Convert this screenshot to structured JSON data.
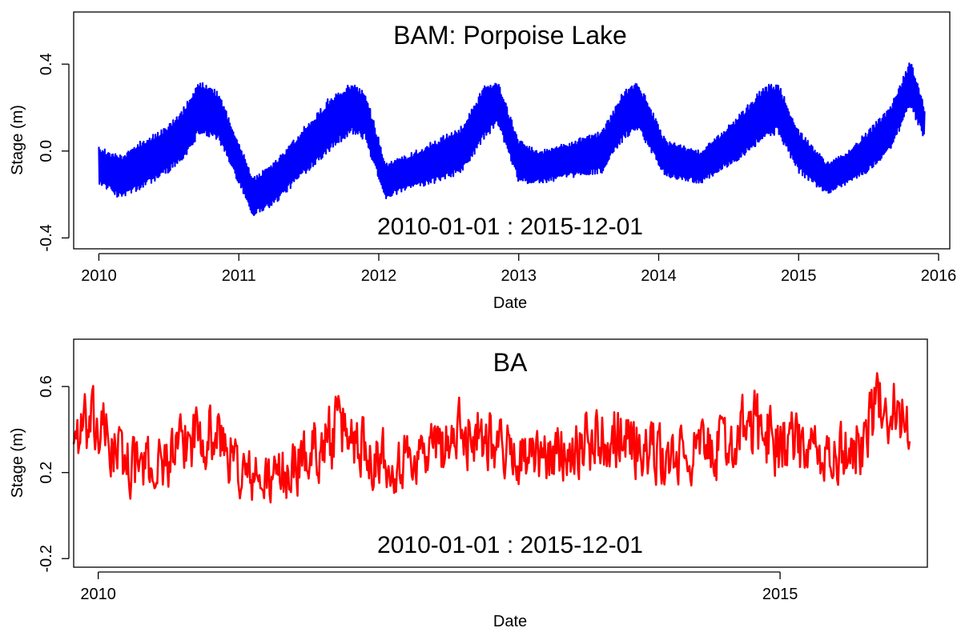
{
  "chart_data": [
    {
      "type": "line",
      "title": "BAM: Porpoise Lake",
      "annotation": "2010-01-01  :  2015-12-01",
      "xlabel": "Date",
      "ylabel": "Stage (m)",
      "xlim": [
        2009.82,
        2016.08
      ],
      "ylim": [
        -0.45,
        0.64
      ],
      "xticks": [
        2010,
        2011,
        2012,
        2013,
        2014,
        2015,
        2016
      ],
      "yticks": [
        -0.4,
        0.0,
        0.4
      ],
      "ytick_labels": [
        "-0.4",
        "0.0",
        "0.4"
      ],
      "series": [
        {
          "color": "#0000ff",
          "x": [
            2010.0,
            2010.15,
            2010.3,
            2010.45,
            2010.6,
            2010.72,
            2010.85,
            2011.0,
            2011.1,
            2011.25,
            2011.45,
            2011.65,
            2011.8,
            2011.9,
            2012.05,
            2012.2,
            2012.4,
            2012.6,
            2012.75,
            2012.85,
            2013.0,
            2013.15,
            2013.4,
            2013.6,
            2013.75,
            2013.85,
            2014.05,
            2014.3,
            2014.55,
            2014.75,
            2014.85,
            2015.0,
            2015.2,
            2015.35,
            2015.5,
            2015.65,
            2015.8,
            2015.9
          ],
          "upper": [
            0.02,
            -0.02,
            0.05,
            0.1,
            0.2,
            0.32,
            0.28,
            0.05,
            -0.12,
            -0.05,
            0.1,
            0.25,
            0.32,
            0.28,
            -0.05,
            -0.02,
            0.05,
            0.12,
            0.3,
            0.33,
            0.05,
            0.0,
            0.05,
            0.1,
            0.28,
            0.33,
            0.05,
            0.0,
            0.15,
            0.3,
            0.32,
            0.1,
            -0.05,
            0.0,
            0.1,
            0.2,
            0.42,
            0.2
          ],
          "lower": [
            -0.15,
            -0.22,
            -0.18,
            -0.12,
            -0.05,
            0.08,
            0.05,
            -0.15,
            -0.3,
            -0.25,
            -0.12,
            0.0,
            0.08,
            0.05,
            -0.22,
            -0.18,
            -0.15,
            -0.1,
            0.05,
            0.12,
            -0.15,
            -0.15,
            -0.12,
            -0.1,
            0.05,
            0.1,
            -0.12,
            -0.15,
            -0.05,
            0.05,
            0.08,
            -0.1,
            -0.2,
            -0.15,
            -0.1,
            0.0,
            0.2,
            0.05
          ]
        }
      ]
    },
    {
      "type": "line",
      "title": "BA",
      "annotation": "2010-01-01  :  2015-12-01",
      "xlabel": "Date",
      "ylabel": "Stage (m)",
      "xlim": [
        2009.82,
        2016.08
      ],
      "ylim": [
        -0.24,
        0.82
      ],
      "xticks": [
        2010,
        2015
      ],
      "yticks": [
        -0.2,
        0.2,
        0.6
      ],
      "ytick_labels": [
        "-0.2",
        "0.2",
        "0.6"
      ],
      "series": [
        {
          "color": "#ff0000",
          "x": [
            2009.82,
            2010.0,
            2010.2,
            2010.4,
            2010.6,
            2010.75,
            2010.9,
            2011.05,
            2011.2,
            2011.4,
            2011.6,
            2011.8,
            2012.0,
            2012.2,
            2012.4,
            2012.6,
            2012.75,
            2012.85,
            2013.0,
            2013.2,
            2013.4,
            2013.6,
            2013.8,
            2014.0,
            2014.2,
            2014.4,
            2014.6,
            2014.8,
            2015.0,
            2015.2,
            2015.4,
            2015.6,
            2015.75,
            2015.85,
            2015.95
          ],
          "mid": [
            0.38,
            0.4,
            0.25,
            0.22,
            0.3,
            0.42,
            0.35,
            0.2,
            0.15,
            0.2,
            0.32,
            0.4,
            0.3,
            0.25,
            0.3,
            0.35,
            0.4,
            0.38,
            0.3,
            0.25,
            0.3,
            0.35,
            0.4,
            0.3,
            0.25,
            0.3,
            0.32,
            0.42,
            0.35,
            0.3,
            0.25,
            0.35,
            0.55,
            0.48,
            0.38
          ],
          "amplitude": [
            0.18,
            0.2,
            0.18,
            0.15,
            0.16,
            0.2,
            0.18,
            0.16,
            0.15,
            0.16,
            0.18,
            0.2,
            0.18,
            0.16,
            0.16,
            0.18,
            0.2,
            0.18,
            0.16,
            0.15,
            0.16,
            0.18,
            0.2,
            0.18,
            0.16,
            0.16,
            0.18,
            0.2,
            0.2,
            0.16,
            0.16,
            0.18,
            0.2,
            0.2,
            0.15
          ]
        }
      ]
    }
  ]
}
